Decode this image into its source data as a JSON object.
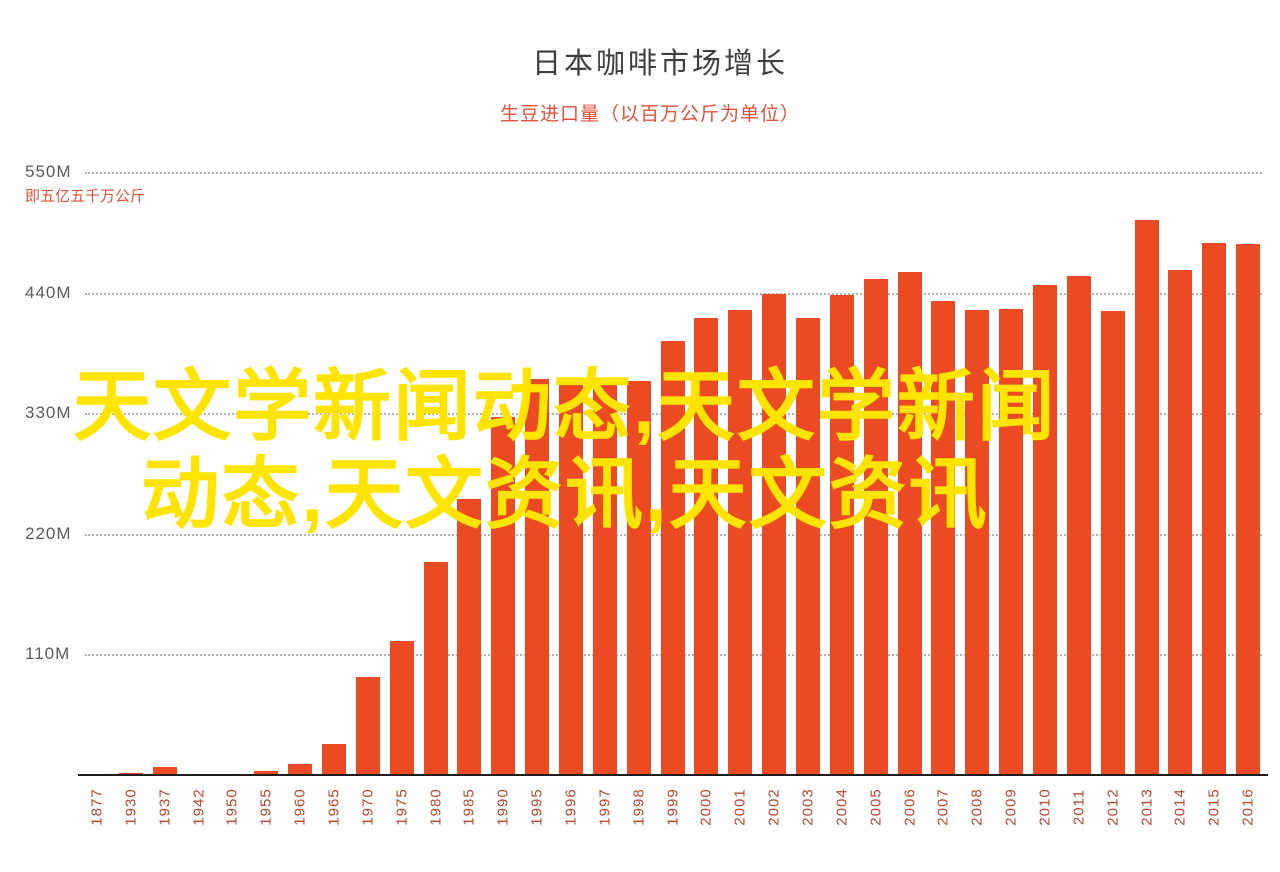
{
  "header": {
    "title": "日本咖啡市场增长",
    "subtitle": "生豆进口量（以百万公斤为单位）"
  },
  "annotation": "即五亿五千万公斤",
  "watermark": {
    "text": "天文学新闻动态,天文学新闻动态,天文资讯,天文资讯",
    "color": "#ffe400"
  },
  "colors": {
    "bar": "#ec4a23",
    "accent_red": "#e0523b",
    "tick_label": "#b5482f",
    "y_label": "#5c5c5c",
    "grid": "#b3b3b3",
    "axis": "#1d1d1d",
    "title": "#3f3f3f"
  },
  "chart_data": {
    "type": "bar",
    "title": "日本咖啡市场增长",
    "subtitle": "生豆进口量（以百万公斤为单位）",
    "unit": "million kg (百万公斤)",
    "categories": [
      "1877",
      "1930",
      "1937",
      "1942",
      "1950",
      "1955",
      "1960",
      "1965",
      "1970",
      "1975",
      "1980",
      "1985",
      "1990",
      "1995",
      "1996",
      "1997",
      "1998",
      "1999",
      "2000",
      "2001",
      "2002",
      "2003",
      "2004",
      "2005",
      "2006",
      "2007",
      "2008",
      "2009",
      "2010",
      "2011",
      "2012",
      "2013",
      "2014",
      "2015",
      "2016"
    ],
    "values": [
      0.2,
      2,
      7,
      0.5,
      0.3,
      4,
      10,
      28,
      89,
      122,
      194,
      252,
      327,
      361,
      356,
      358,
      359,
      396,
      417,
      424,
      439,
      417,
      438,
      452,
      459,
      432,
      424,
      425,
      447,
      455,
      423,
      506,
      461,
      485,
      484
    ],
    "ylim": [
      0,
      550
    ],
    "yticks": [
      {
        "label": "550M",
        "value": 550
      },
      {
        "label": "440M",
        "value": 440
      },
      {
        "label": "330M",
        "value": 330
      },
      {
        "label": "220M",
        "value": 220
      },
      {
        "label": "110M",
        "value": 110
      }
    ],
    "ytick_annotation": "即五亿五千万公斤",
    "grid": "horizontal dotted",
    "legend": "none",
    "x_tick_rotation": -90
  }
}
